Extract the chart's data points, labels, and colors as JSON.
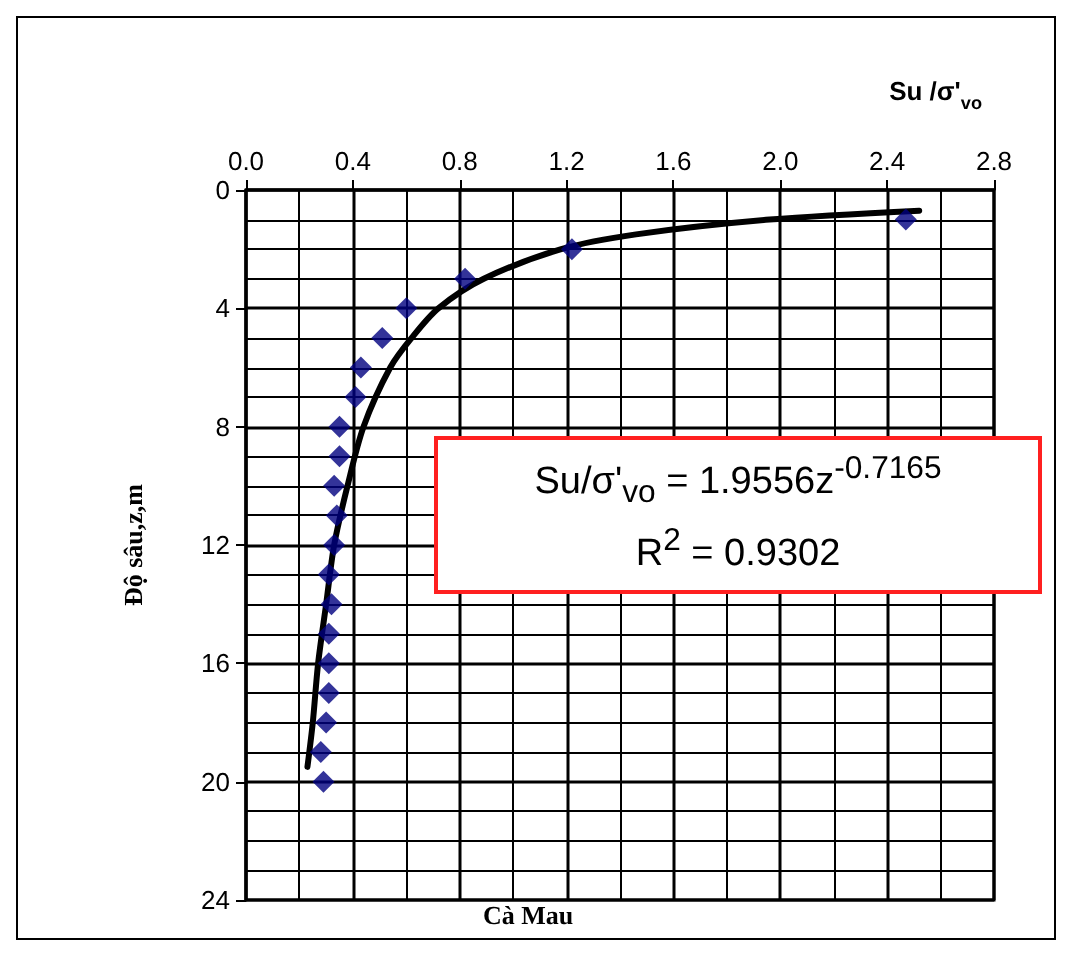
{
  "chart_data": {
    "type": "scatter",
    "title": "Cà Mau",
    "xlabel": "Su /σ'$_{vo}$",
    "ylabel": "Độ sâu,z,m",
    "annotations": [
      "Su/σ'$_{vo}$ = 1.9556z$^{-0.7165}$",
      "R$^{2}$ = 0.9302"
    ],
    "xlim": [
      0,
      2.8
    ],
    "xticks": [
      {
        "value": 0,
        "label": "0.0"
      },
      0.4,
      0.8,
      1.2,
      1.6,
      {
        "value": 2,
        "label": "2.0"
      },
      2.4,
      2.8
    ],
    "ylim": [
      24,
      0
    ],
    "yticks": [
      0,
      4,
      8,
      12,
      16,
      20,
      24
    ],
    "grid": true,
    "series": [
      {
        "color": "#000080",
        "marker": "diamond",
        "x": [
          2.47,
          1.22,
          0.82,
          0.6,
          0.51,
          0.43,
          0.41,
          0.35,
          0.35,
          0.33,
          0.34,
          0.33,
          0.31,
          0.32,
          0.31,
          0.31,
          0.31,
          0.3,
          0.28,
          0.29
        ],
        "values": [
          1,
          2,
          3,
          4,
          5,
          6,
          7,
          8,
          9,
          10,
          11,
          12,
          13,
          14,
          15,
          16,
          17,
          18,
          19,
          20
        ]
      },
      {
        "type": "line",
        "color": "#000000",
        "marker": "none",
        "line_style": "solid",
        "x": [
          2.52,
          1.96,
          1.46,
          1.18,
          0.89,
          0.72,
          0.62,
          0.54,
          0.44,
          0.38,
          0.33,
          0.3,
          0.27,
          0.25,
          0.23
        ],
        "values": [
          0.7,
          1,
          1.5,
          2,
          3,
          4,
          5,
          6,
          8,
          10,
          12,
          14,
          16,
          18,
          19.5
        ]
      }
    ]
  }
}
